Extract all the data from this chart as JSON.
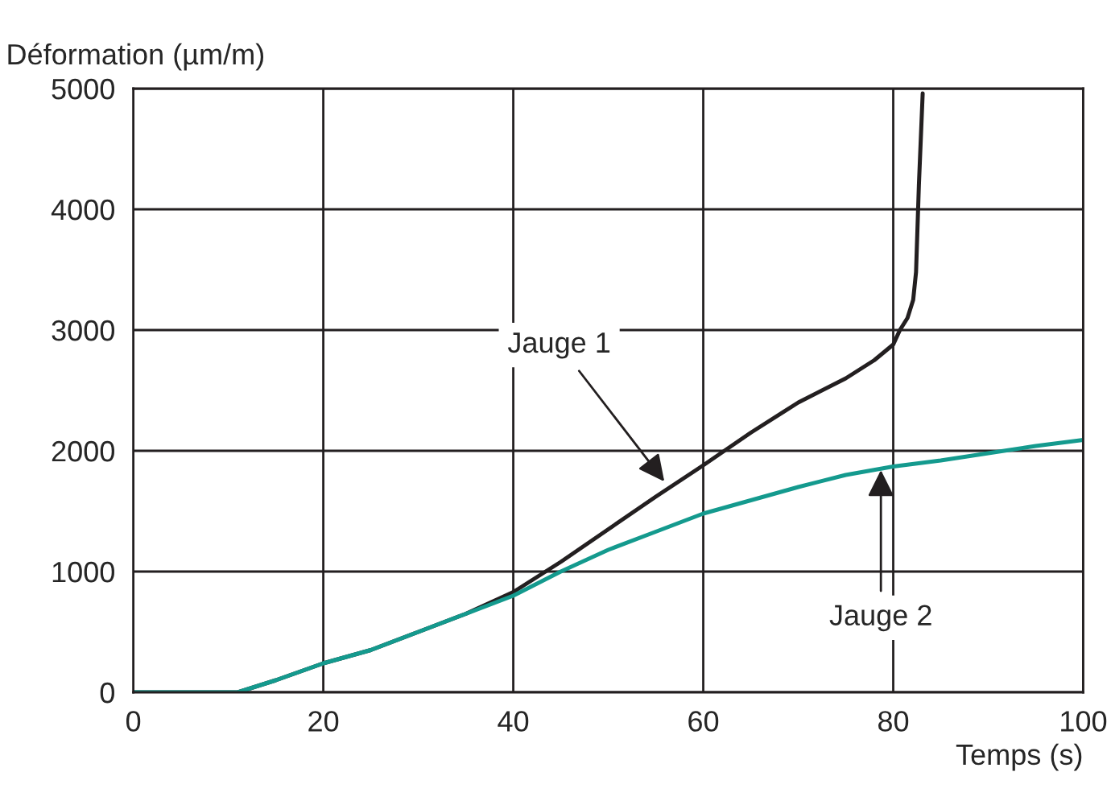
{
  "chart_data": {
    "type": "line",
    "xlabel": "Temps (s)",
    "ylabel": "Déformation (µm/m)",
    "xlim": [
      0,
      100
    ],
    "xticks": [
      0,
      20,
      40,
      60,
      80,
      100
    ],
    "ylim": [
      0,
      5000
    ],
    "yticks": [
      0,
      1000,
      2000,
      3000,
      4000,
      5000
    ],
    "grid": true,
    "legend": false,
    "marker": "none",
    "line_style": "solid",
    "series": [
      {
        "color": "#231f20",
        "x": [
          0,
          5,
          10,
          11,
          15,
          20,
          25,
          30,
          35,
          40,
          45,
          50,
          55,
          60,
          65,
          70,
          75,
          78,
          80,
          80.7,
          81.5,
          82.1,
          82.4,
          82.7,
          83.1
        ],
        "values": [
          0,
          0,
          0,
          0,
          100,
          240,
          350,
          500,
          650,
          830,
          1080,
          1350,
          1620,
          1880,
          2150,
          2400,
          2600,
          2750,
          2880,
          3000,
          3100,
          3250,
          3480,
          4200,
          4960
        ]
      },
      {
        "color": "#149a8e",
        "x": [
          0,
          5,
          10,
          11,
          15,
          20,
          25,
          30,
          35,
          40,
          45,
          50,
          55,
          60,
          65,
          70,
          75,
          80,
          85,
          90,
          95,
          100
        ],
        "values": [
          0,
          0,
          0,
          0,
          100,
          240,
          350,
          500,
          650,
          800,
          1000,
          1180,
          1330,
          1480,
          1590,
          1700,
          1800,
          1870,
          1920,
          1980,
          2040,
          2090
        ]
      }
    ],
    "annotations": [
      {
        "text": "Jauge 1",
        "x": 55.9,
        "y": 1746
      },
      {
        "text": "Jauge 2",
        "x": 78.7,
        "y": 1840
      }
    ]
  }
}
